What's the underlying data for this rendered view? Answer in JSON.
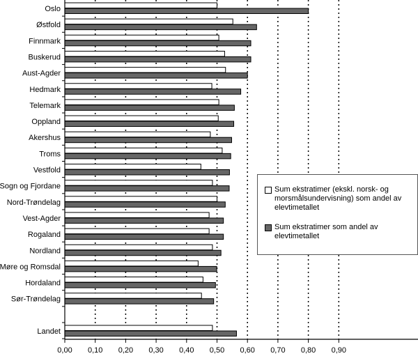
{
  "chart_data": {
    "type": "bar",
    "orientation": "horizontal",
    "title": "",
    "xlabel": "",
    "ylabel": "",
    "xlim": [
      0,
      0.9
    ],
    "xticks": [
      "0,00",
      "0,10",
      "0,20",
      "0,30",
      "0,40",
      "0,50",
      "0,60",
      "0,70",
      "0,80",
      "0,90"
    ],
    "grid": true,
    "legend_position": "right",
    "categories": [
      "Oslo",
      "Østfold",
      "Finnmark",
      "Buskerud",
      "Aust-Agder",
      "Hedmark",
      "Telemark",
      "Oppland",
      "Akershus",
      "Troms",
      "Vestfold",
      "Sogn og Fjordane",
      "Nord-Trøndelag",
      "Vest-Agder",
      "Rogaland",
      "Nordland",
      "Møre og Romsdal",
      "Hordaland",
      "Sør-Trøndelag",
      "",
      "Landet"
    ],
    "series": [
      {
        "name": "Sum ekstratimer (ekskl. norsk- og morsmålsundervisning) som andel av elevtimetallet",
        "color": "#ffffff",
        "values": [
          0.5,
          0.552,
          0.506,
          0.525,
          0.528,
          0.483,
          0.506,
          0.504,
          0.478,
          0.517,
          0.447,
          0.485,
          0.5,
          0.474,
          0.474,
          0.485,
          0.438,
          0.454,
          0.449,
          null,
          0.485
        ]
      },
      {
        "name": "Sum ekstratimer som andel av elevtimetallet",
        "color": "#666666",
        "values": [
          0.8,
          0.63,
          0.611,
          0.611,
          0.6,
          0.578,
          0.557,
          0.555,
          0.548,
          0.545,
          0.541,
          0.54,
          0.527,
          0.521,
          0.521,
          0.513,
          0.499,
          0.495,
          0.489,
          null,
          0.564
        ]
      }
    ]
  }
}
